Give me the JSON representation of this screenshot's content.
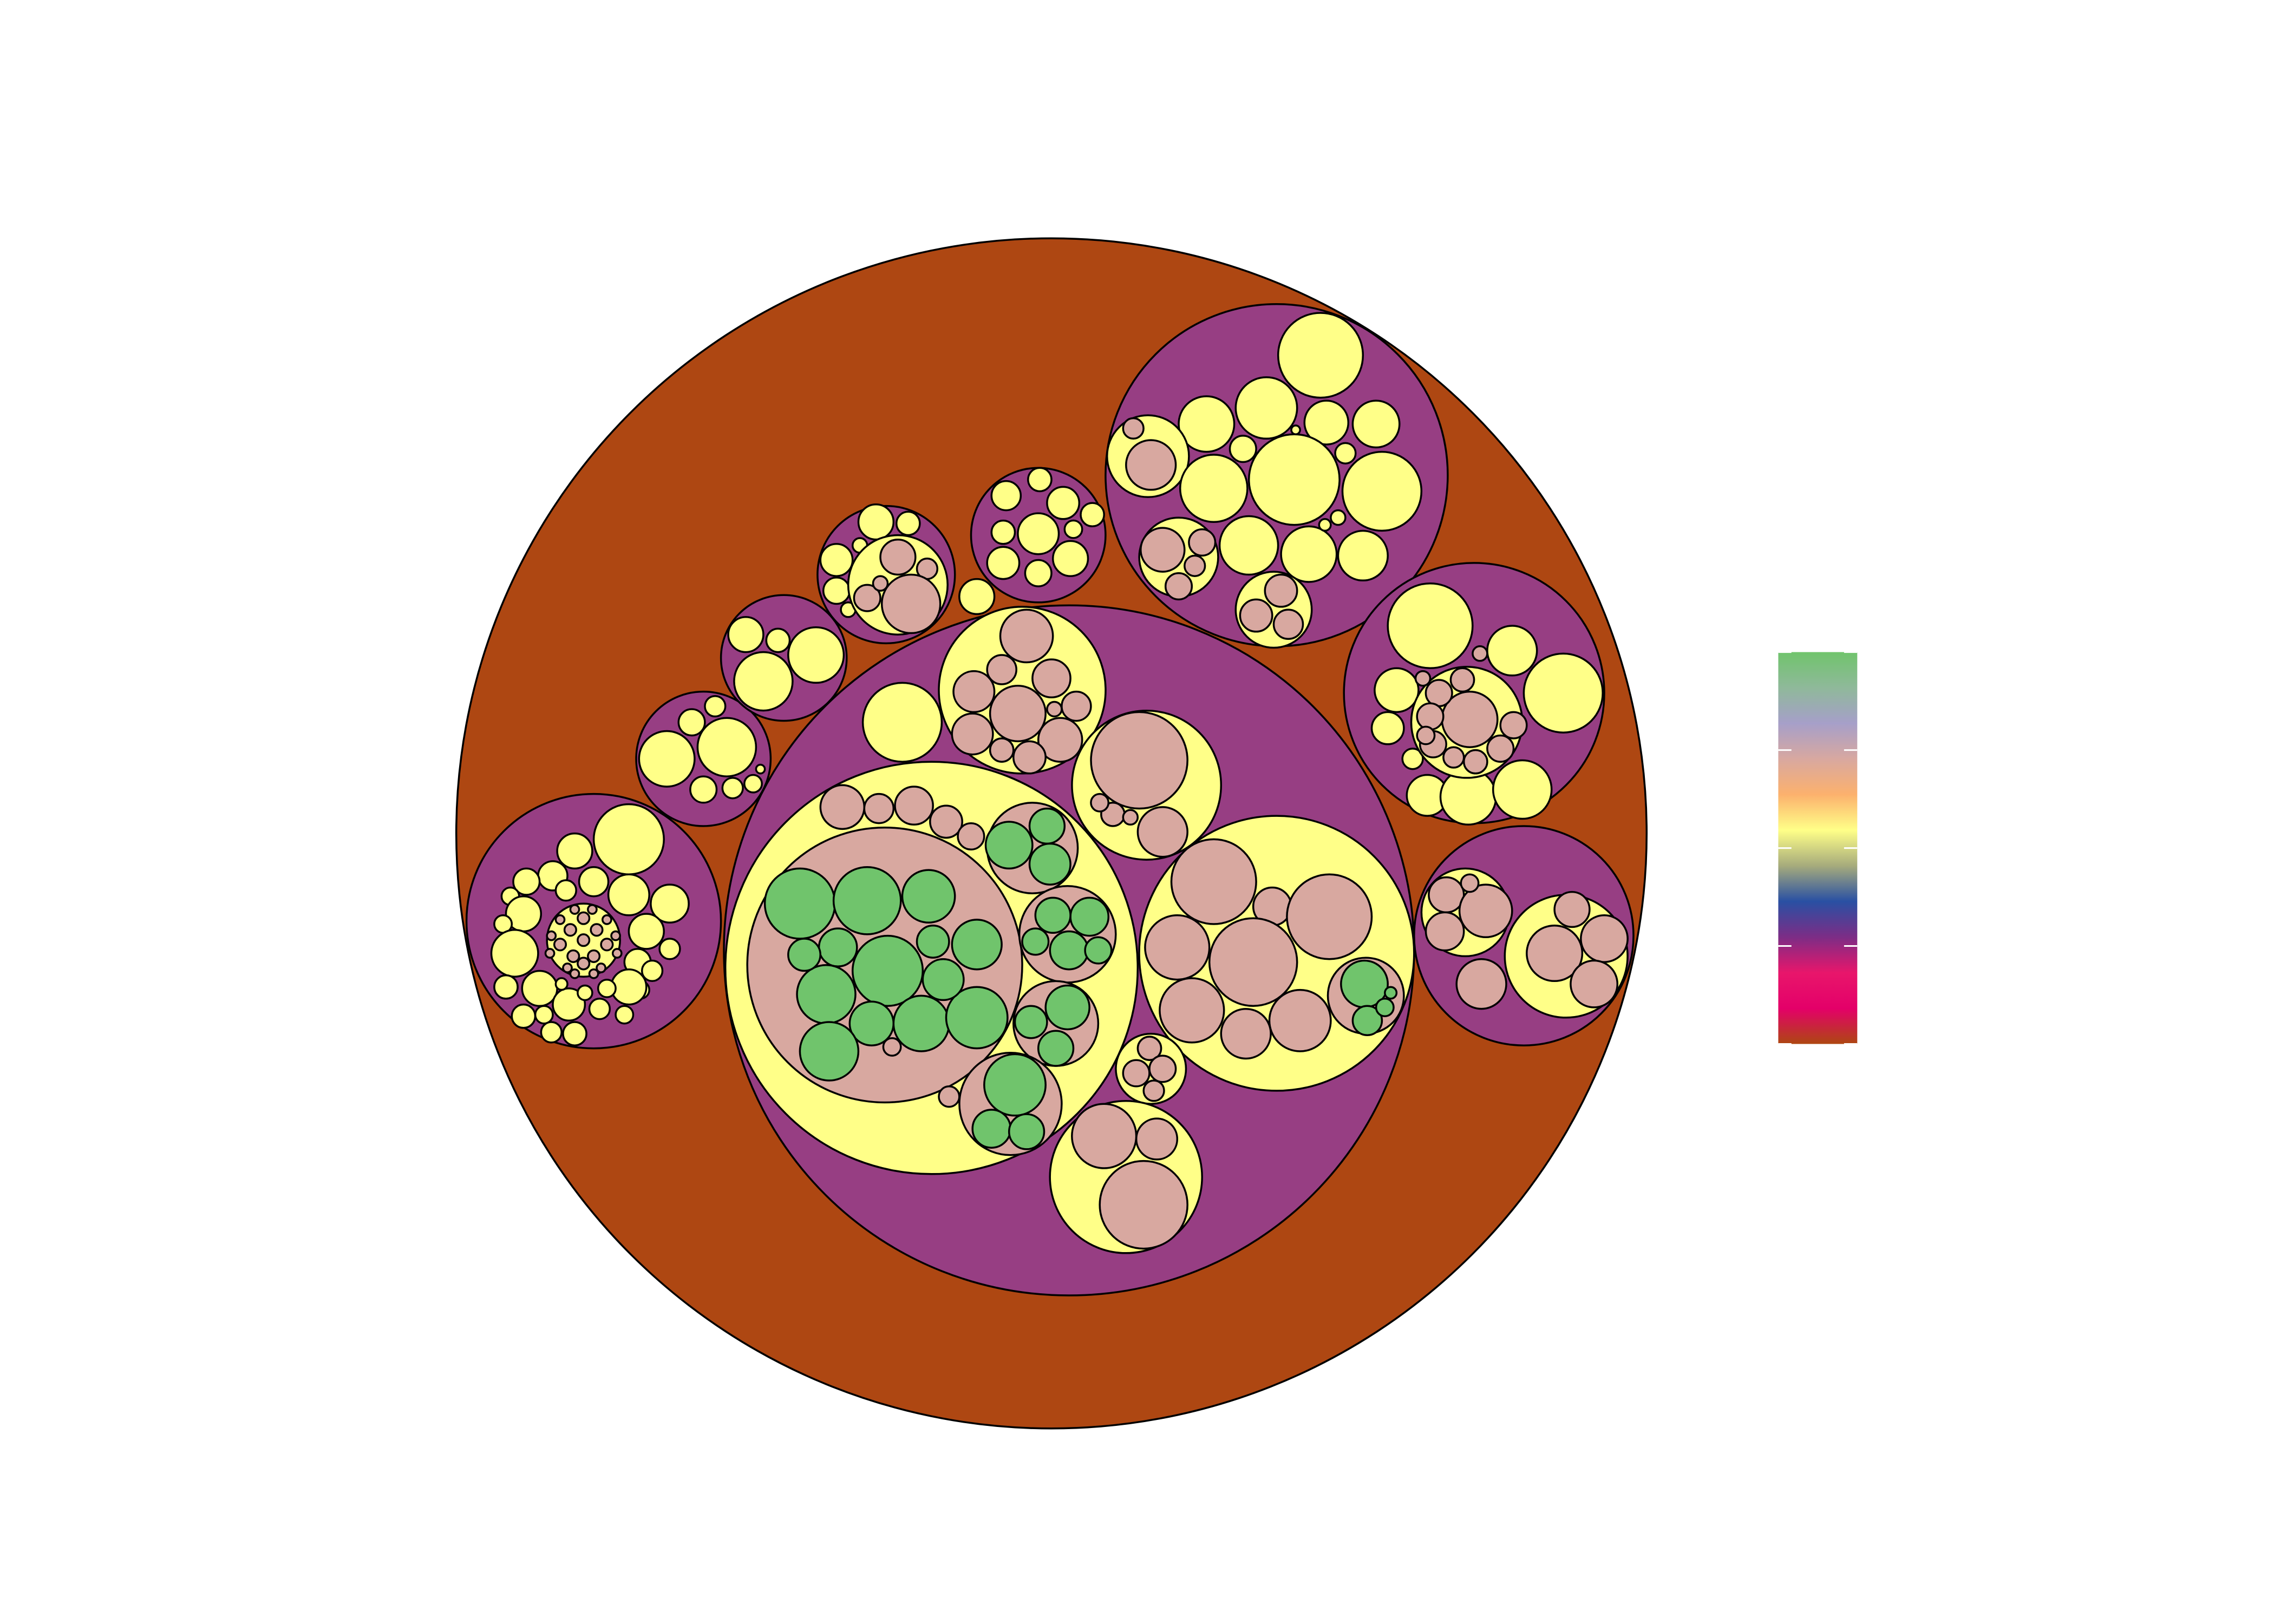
{
  "diagram": {
    "type": "circle-packing",
    "depth_colors": {
      "0": "#AE4712",
      "1": "#973E83",
      "2": "#FFFF88",
      "3": "#D8A8A0",
      "4": "#70C46C"
    }
  },
  "legend": {
    "type": "color-bar",
    "gradient": [
      "#AE4712",
      "#E40069",
      "#E8166B",
      "#7C2D86",
      "#2950A3",
      "#A6AB7C",
      "#FFFF88",
      "#FCB16D",
      "#D8A8A0",
      "#A69FC9",
      "#8FB99A",
      "#70C46C"
    ],
    "tick_count": 4
  }
}
